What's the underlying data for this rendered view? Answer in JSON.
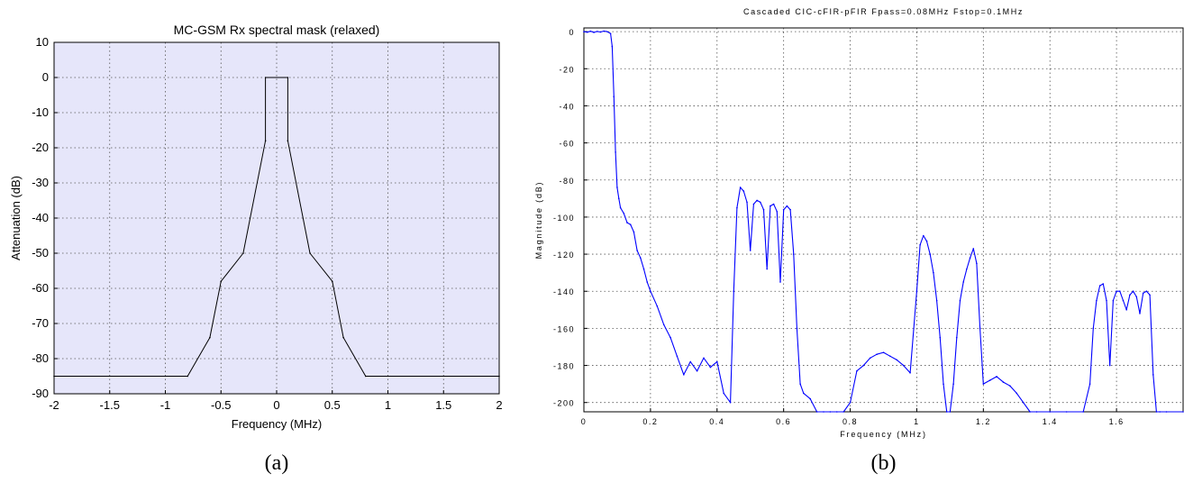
{
  "chart_data": [
    {
      "type": "line",
      "title": "MC-GSM Rx spectral mask (relaxed)",
      "xlabel": "Frequency (MHz)",
      "ylabel": "Attenuation (dB)",
      "xlim": [
        -2,
        2
      ],
      "ylim": [
        -90,
        10
      ],
      "xticks": [
        "-2",
        "-1.5",
        "-1",
        "-0.5",
        "0",
        "0.5",
        "1",
        "1.5",
        "2"
      ],
      "yticks": [
        "10",
        "0",
        "-10",
        "-20",
        "-30",
        "-40",
        "-50",
        "-60",
        "-70",
        "-80",
        "-90"
      ],
      "grid": true,
      "background_color": "#e6e6fa",
      "series": [
        {
          "color": "#000000",
          "x": [
            -2,
            -0.8,
            -0.6,
            -0.5,
            -0.3,
            -0.1,
            -0.1,
            0.1,
            0.1,
            0.3,
            0.5,
            0.6,
            0.8,
            2
          ],
          "y": [
            -85,
            -85,
            -74,
            -58,
            -50,
            -18,
            0,
            0,
            -18,
            -50,
            -58,
            -74,
            -85,
            -85
          ]
        }
      ],
      "caption": "(a)"
    },
    {
      "type": "line",
      "title": "Cascaded CIC-cFIR-pFIR Fpass=0.08MHz Fstop=0.1MHz",
      "xlabel": "Frequency (MHz)",
      "ylabel": "Magnitude (dB)",
      "xlim": [
        0,
        1.8
      ],
      "ylim": [
        -205,
        2
      ],
      "xticks": [
        "0",
        "0.2",
        "0.4",
        "0.6",
        "0.8",
        "1",
        "1.2",
        "1.4",
        "1.6"
      ],
      "yticks": [
        "0",
        "-20",
        "-40",
        "-60",
        "-80",
        "-100",
        "-120",
        "-140",
        "-160",
        "-180",
        "-200"
      ],
      "grid": true,
      "series": [
        {
          "color": "#0000ff",
          "x": [
            0,
            0.01,
            0.02,
            0.03,
            0.04,
            0.05,
            0.06,
            0.07,
            0.08,
            0.085,
            0.09,
            0.095,
            0.1,
            0.105,
            0.11,
            0.12,
            0.13,
            0.14,
            0.15,
            0.16,
            0.17,
            0.18,
            0.19,
            0.2,
            0.22,
            0.24,
            0.26,
            0.28,
            0.3,
            0.32,
            0.34,
            0.36,
            0.38,
            0.4,
            0.42,
            0.44,
            0.45,
            0.46,
            0.47,
            0.48,
            0.49,
            0.5,
            0.51,
            0.52,
            0.53,
            0.54,
            0.55,
            0.56,
            0.57,
            0.58,
            0.59,
            0.6,
            0.61,
            0.62,
            0.63,
            0.64,
            0.65,
            0.66,
            0.68,
            0.7,
            0.72,
            0.74,
            0.76,
            0.78,
            0.8,
            0.82,
            0.84,
            0.86,
            0.88,
            0.9,
            0.92,
            0.94,
            0.96,
            0.98,
            1.0,
            1.01,
            1.02,
            1.03,
            1.04,
            1.05,
            1.06,
            1.07,
            1.08,
            1.09,
            1.1,
            1.11,
            1.12,
            1.13,
            1.14,
            1.15,
            1.16,
            1.17,
            1.18,
            1.19,
            1.2,
            1.22,
            1.24,
            1.26,
            1.28,
            1.3,
            1.32,
            1.34,
            1.36,
            1.4,
            1.45,
            1.5,
            1.52,
            1.53,
            1.54,
            1.55,
            1.56,
            1.57,
            1.58,
            1.59,
            1.6,
            1.61,
            1.62,
            1.63,
            1.64,
            1.65,
            1.66,
            1.67,
            1.68,
            1.69,
            1.7,
            1.71,
            1.72,
            1.73,
            1.75,
            1.8
          ],
          "y": [
            0,
            -0.3,
            0.2,
            -0.4,
            0.1,
            -0.2,
            0.3,
            0,
            -1,
            -8,
            -35,
            -65,
            -84,
            -90,
            -95,
            -98,
            -103,
            -104,
            -108,
            -118,
            -122,
            -128,
            -135,
            -140,
            -148,
            -158,
            -165,
            -175,
            -185,
            -178,
            -183,
            -176,
            -181,
            -178,
            -195,
            -200,
            -140,
            -95,
            -84,
            -86,
            -92,
            -118,
            -93,
            -91,
            -92,
            -96,
            -128,
            -94,
            -93,
            -97,
            -135,
            -96,
            -94,
            -96,
            -120,
            -160,
            -190,
            -195,
            -198,
            -205,
            -205,
            -205,
            -205,
            -205,
            -200,
            -183,
            -180,
            -176,
            -174,
            -173,
            -175,
            -177,
            -180,
            -184,
            -140,
            -115,
            -110,
            -113,
            -120,
            -130,
            -145,
            -165,
            -190,
            -205,
            -205,
            -190,
            -165,
            -145,
            -135,
            -128,
            -122,
            -117,
            -125,
            -160,
            -190,
            -188,
            -186,
            -189,
            -191,
            -195,
            -200,
            -205,
            -205,
            -205,
            -205,
            -205,
            -190,
            -160,
            -145,
            -137,
            -136,
            -145,
            -180,
            -145,
            -140,
            -140,
            -145,
            -150,
            -142,
            -140,
            -143,
            -152,
            -141,
            -140,
            -142,
            -185,
            -205,
            -205,
            -205,
            -205
          ]
        }
      ],
      "caption": "(b)"
    }
  ]
}
